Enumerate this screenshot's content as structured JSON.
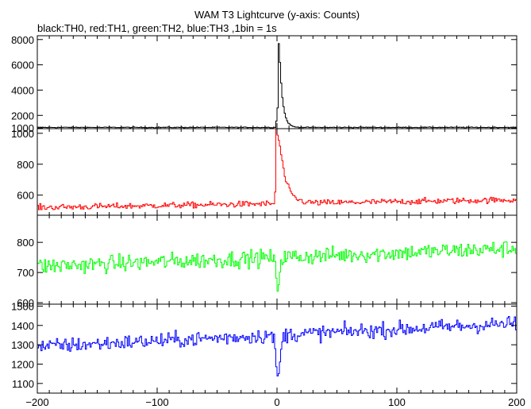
{
  "chart_data": {
    "type": "line",
    "title": "WAM T3 Lightcurve (y-axis: Counts)",
    "subtitle": "black:TH0, red:TH1, green:TH2, blue:TH3 ,1bin = 1s",
    "xlabel": "",
    "ylabel": "",
    "xlim": [
      -200,
      200
    ],
    "x_ticks": [
      -200,
      -100,
      0,
      100,
      200
    ],
    "panels": [
      {
        "name": "TH0",
        "color": "#000000",
        "ylim": [
          950,
          8300
        ],
        "y_ticks": [
          1000,
          2000,
          4000,
          6000,
          8000
        ],
        "shape": {
          "baseline": 1050,
          "noise": 25,
          "trend": 0,
          "peak": 8000,
          "peak_time": 0.5,
          "decay": 2.5,
          "second_bump": 4800,
          "second_time": 2.0
        }
      },
      {
        "name": "TH1",
        "color": "#ff0000",
        "ylim": [
          470,
          1030
        ],
        "y_ticks": [
          600,
          800,
          1000
        ],
        "shape": {
          "baseline": 520,
          "noise": 14,
          "trend": 50,
          "peak": 1000,
          "peak_time": -1.0,
          "decay": 6.0,
          "second_bump": 780,
          "second_time": 2.5
        }
      },
      {
        "name": "TH2",
        "color": "#00ff00",
        "ylim": [
          595,
          890
        ],
        "y_ticks": [
          600,
          700,
          800
        ],
        "shape": {
          "baseline": 720,
          "noise": 20,
          "trend": 60,
          "dip": 620,
          "dip_time": 0.0,
          "dip_width": 2.0
        }
      },
      {
        "name": "TH3",
        "color": "#0000ff",
        "ylim": [
          1050,
          1510
        ],
        "y_ticks": [
          1100,
          1200,
          1300,
          1400,
          1500
        ],
        "shape": {
          "baseline": 1290,
          "noise": 28,
          "trend": 120,
          "dip": 1070,
          "dip_time": 0.5,
          "dip_width": 2.5
        }
      }
    ]
  }
}
